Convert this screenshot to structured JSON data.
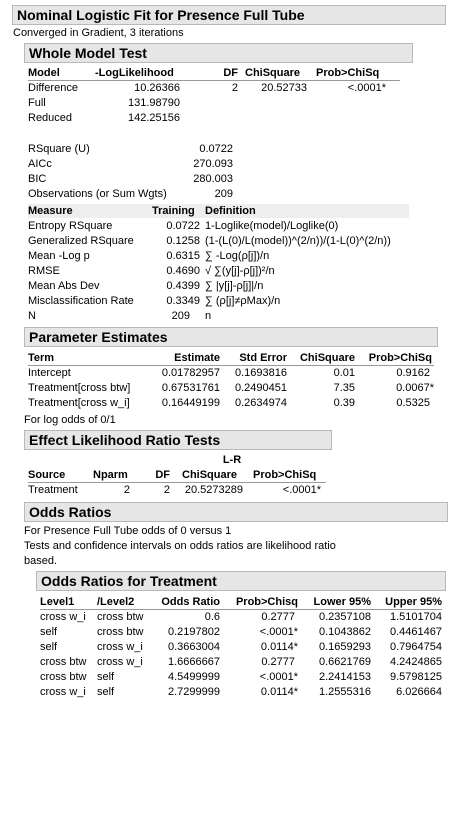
{
  "title": "Nominal Logistic Fit for Presence Full Tube",
  "convergence": "Converged in Gradient, 3 iterations",
  "whole_model": {
    "header": "Whole Model Test",
    "columns": [
      "Model",
      "-LogLikelihood",
      "DF",
      "ChiSquare",
      "Prob>ChiSq"
    ],
    "rows": [
      [
        "Difference",
        "10.26366",
        "2",
        "20.52733",
        "<.0001*"
      ],
      [
        "Full",
        "131.98790",
        "",
        "",
        ""
      ],
      [
        "Reduced",
        "142.25156",
        "",
        "",
        ""
      ]
    ],
    "stats": [
      [
        "RSquare (U)",
        "0.0722"
      ],
      [
        "AICc",
        "270.093"
      ],
      [
        "BIC",
        "280.003"
      ],
      [
        "Observations (or Sum Wgts)",
        "209"
      ]
    ],
    "measure_columns": [
      "Measure",
      "Training",
      "Definition"
    ],
    "measures": [
      [
        "Entropy RSquare",
        "0.0722",
        "1-Loglike(model)/Loglike(0)"
      ],
      [
        "Generalized RSquare",
        "0.1258",
        "(1-(L(0)/L(model))^(2/n))/(1-L(0)^(2/n))"
      ],
      [
        "Mean -Log p",
        "0.6315",
        "∑ -Log(ρ[j])/n"
      ],
      [
        "RMSE",
        "0.4690",
        "√ ∑(y[j]-ρ[j])²/n"
      ],
      [
        "Mean Abs Dev",
        "0.4399",
        "∑ |y[j]-ρ[j]|/n"
      ],
      [
        "Misclassification Rate",
        "0.3349",
        "∑ (ρ[j]≠ρMax)/n"
      ],
      [
        "N",
        "209",
        "n"
      ]
    ]
  },
  "param": {
    "header": "Parameter Estimates",
    "columns": [
      "Term",
      "Estimate",
      "Std Error",
      "ChiSquare",
      "Prob>ChiSq"
    ],
    "rows": [
      [
        "Intercept",
        "0.01782957",
        "0.1693816",
        "0.01",
        "0.9162"
      ],
      [
        "Treatment[cross btw]",
        "0.67531761",
        "0.2490451",
        "7.35",
        "0.0067*"
      ],
      [
        "Treatment[cross w_i]",
        "0.16449199",
        "0.2634974",
        "0.39",
        "0.5325"
      ]
    ],
    "note": "For log odds of 0/1"
  },
  "lr": {
    "header": "Effect Likelihood Ratio Tests",
    "lr_label": "L-R",
    "columns": [
      "Source",
      "Nparm",
      "DF",
      "ChiSquare",
      "Prob>ChiSq"
    ],
    "rows": [
      [
        "Treatment",
        "2",
        "2",
        "20.5273289",
        "<.0001*"
      ]
    ]
  },
  "odds": {
    "header": "Odds Ratios",
    "line1": "For Presence Full Tube odds of 0 versus 1",
    "line2": "Tests and confidence intervals on odds ratios are likelihood ratio",
    "line3": "based.",
    "sub_header": "Odds Ratios for Treatment",
    "columns": [
      "Level1",
      "/Level2",
      "Odds Ratio",
      "Prob>Chisq",
      "Lower 95%",
      "Upper 95%"
    ],
    "rows": [
      [
        "cross w_i",
        "cross btw",
        "0.6",
        "0.2777",
        "0.2357108",
        "1.5101704"
      ],
      [
        "self",
        "cross btw",
        "0.2197802",
        "<.0001*",
        "0.1043862",
        "0.4461467"
      ],
      [
        "self",
        "cross w_i",
        "0.3663004",
        "0.0114*",
        "0.1659293",
        "0.7964754"
      ],
      [
        "cross btw",
        "cross w_i",
        "1.6666667",
        "0.2777",
        "0.6621769",
        "4.2424865"
      ],
      [
        "cross btw",
        "self",
        "4.5499999",
        "<.0001*",
        "2.2414153",
        "9.5798125"
      ],
      [
        "cross w_i",
        "self",
        "2.7299999",
        "0.0114*",
        "1.2555316",
        "6.026664"
      ]
    ]
  }
}
